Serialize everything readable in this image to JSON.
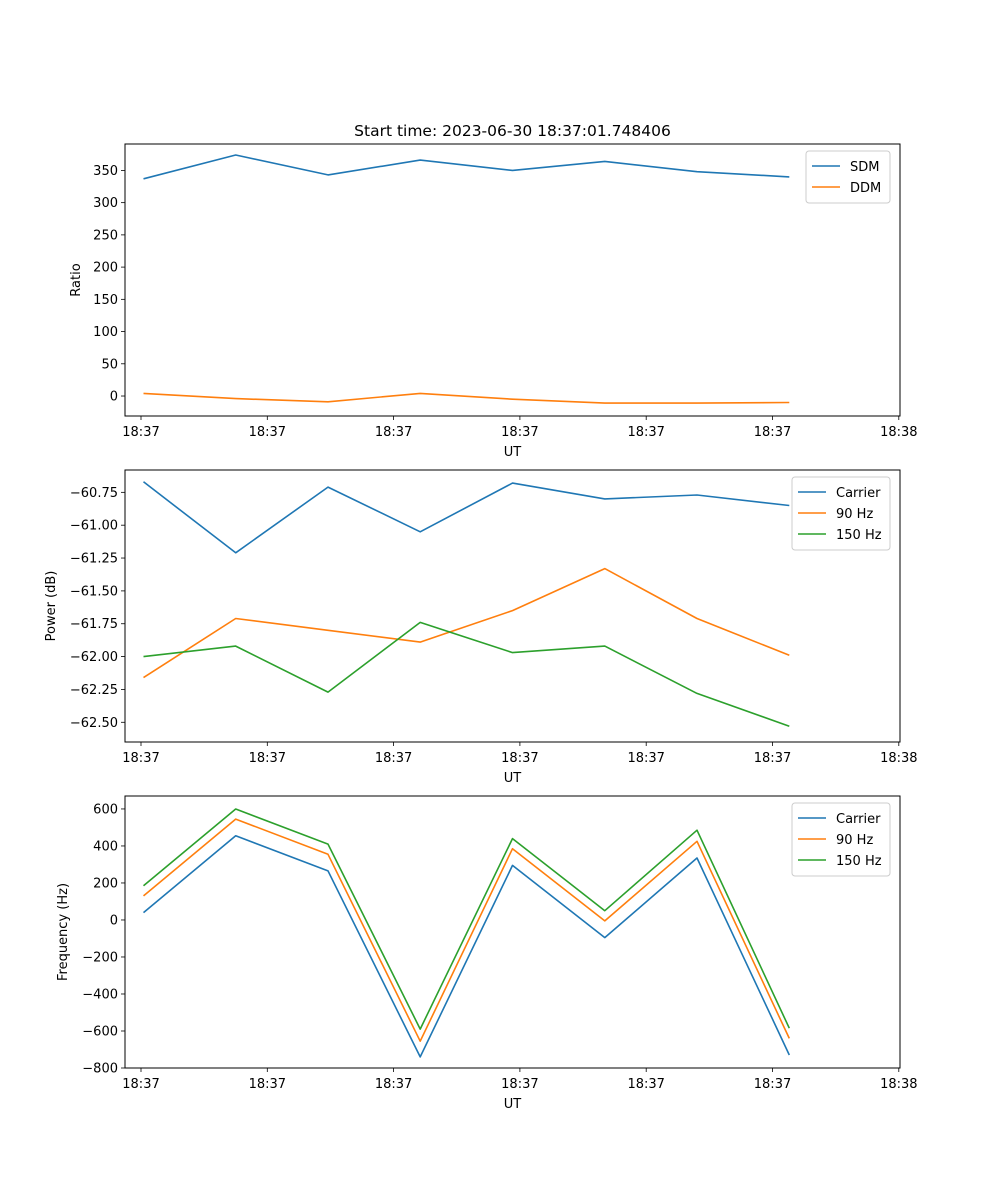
{
  "figure": {
    "title": "Start time: 2023-06-30 18:37:01.748406"
  },
  "colors": {
    "series_1": "#1f77b4",
    "series_2": "#ff7f0e",
    "series_3": "#2ca02c"
  },
  "chart_data": [
    {
      "type": "line",
      "title": "Start time: 2023-06-30 18:37:01.748406",
      "xlabel": "UT",
      "ylabel": "Ratio",
      "x": [
        1,
        2,
        3,
        4,
        5,
        6,
        7,
        8
      ],
      "xlim": [
        0.8,
        9.2
      ],
      "x_ticks": [
        {
          "x": 0.8,
          "label": "18:37"
        },
        {
          "x": 2.33,
          "label": "18:37"
        },
        {
          "x": 3.86,
          "label": "18:37"
        },
        {
          "x": 5.39,
          "label": "18:37"
        },
        {
          "x": 6.92,
          "label": "18:37"
        },
        {
          "x": 8.45,
          "label": "18:37"
        },
        {
          "x": 9.98,
          "label": "18:38"
        }
      ],
      "ylim": [
        -31,
        391
      ],
      "y_ticks": [
        0,
        50,
        100,
        150,
        200,
        250,
        300,
        350
      ],
      "grid": false,
      "legend_position": "top-right",
      "series": [
        {
          "name": "SDM",
          "color": "#1f77b4",
          "values": [
            337,
            374,
            343,
            366,
            350,
            364,
            348,
            340
          ]
        },
        {
          "name": "DDM",
          "color": "#ff7f0e",
          "values": [
            4,
            -4,
            -9,
            4,
            -5,
            -11,
            -11,
            -10
          ]
        }
      ]
    },
    {
      "type": "line",
      "title": "",
      "xlabel": "UT",
      "ylabel": "Power (dB)",
      "x": [
        1,
        2,
        3,
        4,
        5,
        6,
        7,
        8
      ],
      "xlim": [
        0.8,
        9.2
      ],
      "x_ticks": [
        {
          "x": 0.8,
          "label": "18:37"
        },
        {
          "x": 2.33,
          "label": "18:37"
        },
        {
          "x": 3.86,
          "label": "18:37"
        },
        {
          "x": 5.39,
          "label": "18:37"
        },
        {
          "x": 6.92,
          "label": "18:37"
        },
        {
          "x": 8.45,
          "label": "18:37"
        },
        {
          "x": 9.98,
          "label": "18:38"
        }
      ],
      "ylim": [
        -62.65,
        -60.58
      ],
      "y_ticks": [
        -62.5,
        -62.25,
        -62.0,
        -61.75,
        -61.5,
        -61.25,
        -61.0,
        -60.75
      ],
      "y_tick_labels": [
        "−62.50",
        "−62.25",
        "−62.00",
        "−61.75",
        "−61.50",
        "−61.25",
        "−61.00",
        "−60.75"
      ],
      "grid": false,
      "legend_position": "top-right",
      "series": [
        {
          "name": "Carrier",
          "color": "#1f77b4",
          "values": [
            -60.67,
            -61.21,
            -60.71,
            -61.05,
            -60.68,
            -60.8,
            -60.77,
            -60.85
          ]
        },
        {
          "name": "90 Hz",
          "color": "#ff7f0e",
          "values": [
            -62.16,
            -61.71,
            -61.8,
            -61.89,
            -61.65,
            -61.33,
            -61.71,
            -61.99
          ]
        },
        {
          "name": "150 Hz",
          "color": "#2ca02c",
          "values": [
            -62.0,
            -61.92,
            -62.27,
            -61.74,
            -61.97,
            -61.92,
            -62.28,
            -62.53
          ]
        }
      ]
    },
    {
      "type": "line",
      "title": "",
      "xlabel": "UT",
      "ylabel": "Frequency (Hz)",
      "x": [
        1,
        2,
        3,
        4,
        5,
        6,
        7,
        8
      ],
      "xlim": [
        0.8,
        9.2
      ],
      "x_ticks": [
        {
          "x": 0.8,
          "label": "18:37"
        },
        {
          "x": 2.33,
          "label": "18:37"
        },
        {
          "x": 3.86,
          "label": "18:37"
        },
        {
          "x": 5.39,
          "label": "18:37"
        },
        {
          "x": 6.92,
          "label": "18:37"
        },
        {
          "x": 8.45,
          "label": "18:37"
        },
        {
          "x": 9.98,
          "label": "18:38"
        }
      ],
      "ylim": [
        -800,
        670
      ],
      "y_ticks": [
        -800,
        -600,
        -400,
        -200,
        0,
        200,
        400,
        600
      ],
      "y_tick_labels": [
        "−800",
        "−600",
        "−400",
        "−200",
        "0",
        "200",
        "400",
        "600"
      ],
      "grid": false,
      "legend_position": "top-right",
      "series": [
        {
          "name": "Carrier",
          "color": "#1f77b4",
          "values": [
            40,
            455,
            265,
            -740,
            295,
            -95,
            335,
            -730
          ]
        },
        {
          "name": "90 Hz",
          "color": "#ff7f0e",
          "values": [
            130,
            545,
            355,
            -655,
            385,
            -5,
            425,
            -640
          ]
        },
        {
          "name": "150 Hz",
          "color": "#2ca02c",
          "values": [
            185,
            600,
            410,
            -590,
            440,
            50,
            485,
            -585
          ]
        }
      ]
    }
  ]
}
